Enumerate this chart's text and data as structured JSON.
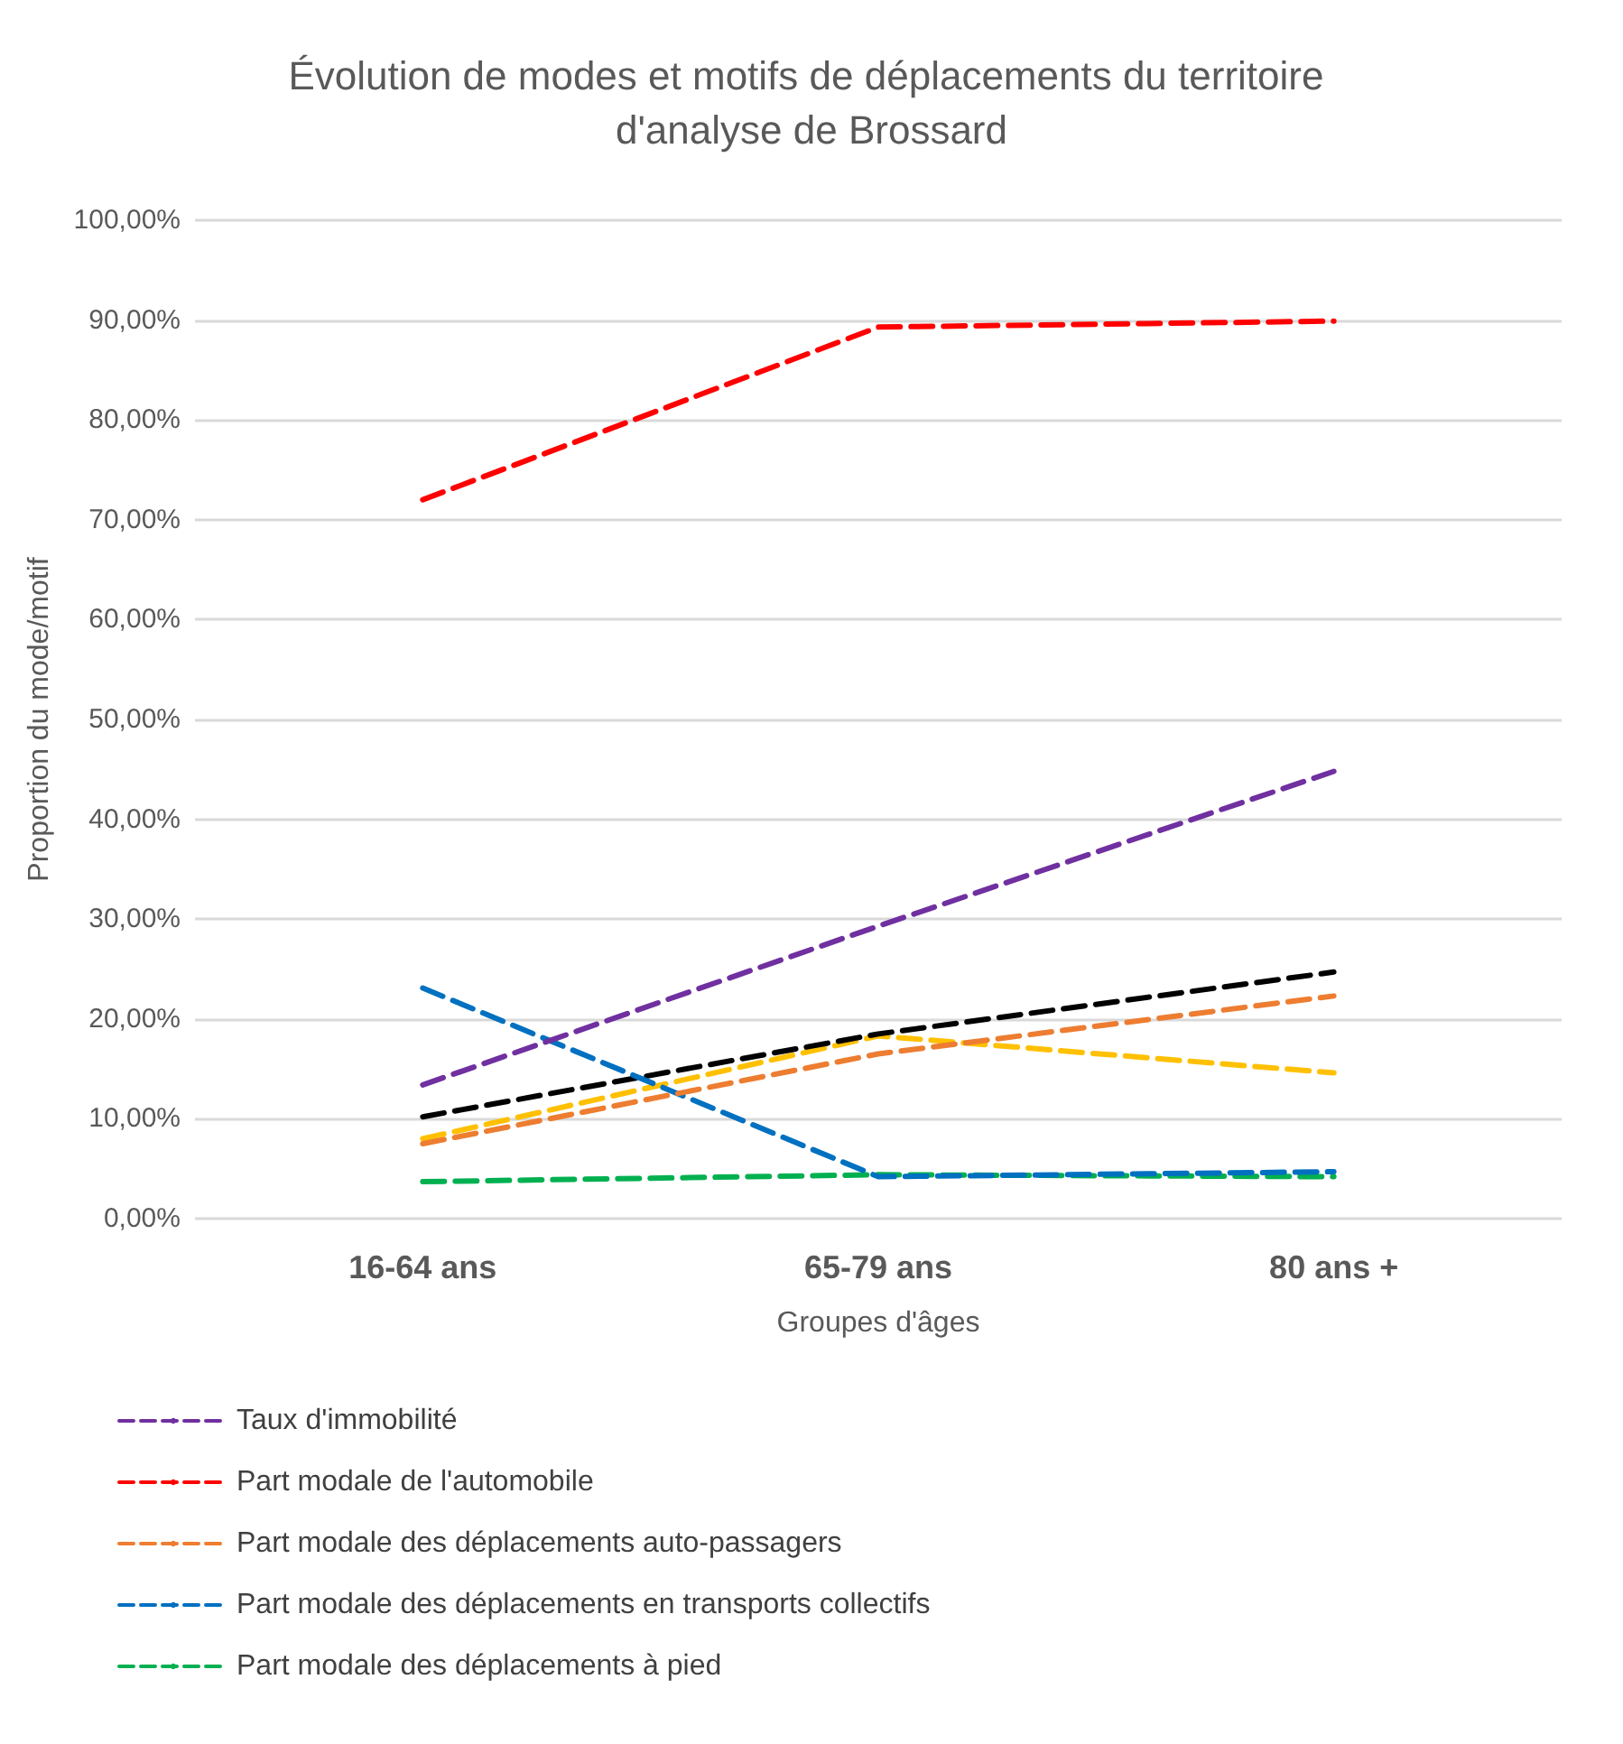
{
  "chart_data": {
    "type": "line",
    "title": "Évolution de modes et motifs de déplacements du territoire d'analyse de Brossard",
    "xlabel": "Groupes d'âges",
    "ylabel": "Proportion du mode/motif",
    "categories": [
      "16-64 ans",
      "65-79 ans",
      "80 ans +"
    ],
    "series": [
      {
        "name": "Taux d'immobilité",
        "color": "#7030a0",
        "values": [
          13.4,
          29.3,
          44.8
        ]
      },
      {
        "name": "Part modale de l'automobile",
        "color": "#ff0000",
        "values": [
          72.0,
          89.3,
          89.9
        ]
      },
      {
        "name": "Part modale des déplacements auto-passagers",
        "color": "#ed7d31",
        "values": [
          7.5,
          16.5,
          22.3
        ]
      },
      {
        "name": "Part modale des déplacements en transports collectifs",
        "color": "#0070c0",
        "values": [
          23.1,
          4.2,
          4.7
        ]
      },
      {
        "name": "Part modale des déplacements à pied",
        "color": "#00b050",
        "values": [
          3.7,
          4.4,
          4.2
        ]
      },
      {
        "color": "#000000",
        "values": [
          10.2,
          18.5,
          24.7
        ]
      },
      {
        "color": "#ffc000",
        "values": [
          8.0,
          18.3,
          14.6
        ]
      }
    ],
    "ylim": [
      0,
      100
    ],
    "yticks": [
      {
        "value": 0,
        "label": "0,00%"
      },
      {
        "value": 10,
        "label": "10,00%"
      },
      {
        "value": 20,
        "label": "20,00%"
      },
      {
        "value": 30,
        "label": "30,00%"
      },
      {
        "value": 40,
        "label": "40,00%"
      },
      {
        "value": 50,
        "label": "50,00%"
      },
      {
        "value": 60,
        "label": "60,00%"
      },
      {
        "value": 70,
        "label": "70,00%"
      },
      {
        "value": 80,
        "label": "80,00%"
      },
      {
        "value": 90,
        "label": "90,00%"
      },
      {
        "value": 100,
        "label": "100,00%"
      }
    ],
    "grid": "y",
    "legend": "bottom left",
    "marker": "none",
    "line_style": "dashed"
  }
}
